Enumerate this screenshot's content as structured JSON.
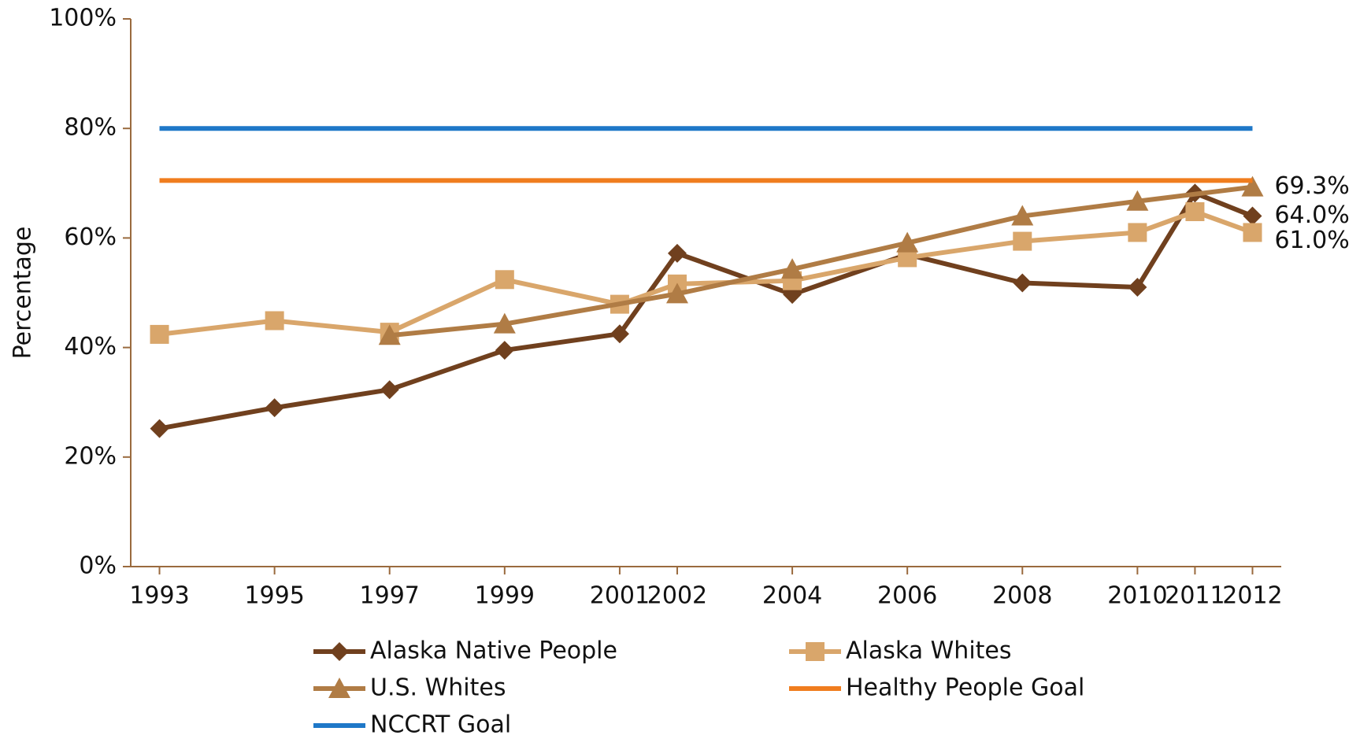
{
  "chart_data": {
    "type": "line",
    "y_label": "Percentage",
    "x": [
      1993,
      1995,
      1997,
      1999,
      2001,
      2002,
      2004,
      2006,
      2008,
      2010,
      2011,
      2012
    ],
    "xlim": [
      1992.5,
      2012.5
    ],
    "xticks": [
      1993,
      1995,
      1997,
      1999,
      2001,
      2002,
      2004,
      2006,
      2008,
      2010,
      2011,
      2012
    ],
    "ylim": [
      0,
      100
    ],
    "yticks": [
      {
        "value": 0,
        "label": "0%"
      },
      {
        "value": 20,
        "label": "20%"
      },
      {
        "value": 40,
        "label": "40%"
      },
      {
        "value": 60,
        "label": "60%"
      },
      {
        "value": 80,
        "label": "80%"
      },
      {
        "value": 100,
        "label": "100%"
      }
    ],
    "grid": false,
    "legend": "bottom",
    "series": [
      {
        "name": "Alaska Native People",
        "color": "#70401e",
        "marker": "diamond",
        "values": [
          25.2,
          29.0,
          32.3,
          39.5,
          42.5,
          57.2,
          49.7,
          57.0,
          51.8,
          51.0,
          68.2,
          64.0
        ],
        "value_labels": [
          null,
          null,
          null,
          null,
          null,
          null,
          null,
          null,
          null,
          null,
          null,
          "64.0%"
        ]
      },
      {
        "name": "Alaska Whites",
        "color": "#d9a66b",
        "marker": "square",
        "values": [
          42.4,
          44.9,
          42.8,
          52.4,
          47.9,
          51.6,
          52.2,
          56.4,
          59.4,
          61.0,
          64.8,
          61.0
        ],
        "value_labels": [
          null,
          null,
          null,
          null,
          null,
          null,
          null,
          null,
          null,
          null,
          null,
          "61.0%"
        ]
      },
      {
        "name": "U.S. Whites",
        "color": "#b07c45",
        "marker": "triangle",
        "x": [
          1997,
          1999,
          2002,
          2004,
          2006,
          2008,
          2010,
          2012
        ],
        "values": [
          42.2,
          44.3,
          49.8,
          54.3,
          59.1,
          64.0,
          66.7,
          69.3
        ],
        "value_labels": [
          null,
          null,
          null,
          null,
          null,
          null,
          null,
          "69.3%"
        ]
      },
      {
        "name": "Healthy People Goal",
        "color": "#f07d1e",
        "marker": "none",
        "values": [
          70.5,
          70.5,
          70.5,
          70.5,
          70.5,
          70.5,
          70.5,
          70.5,
          70.5,
          70.5,
          70.5,
          70.5
        ]
      },
      {
        "name": "NCCRT Goal",
        "color": "#1f78c8",
        "marker": "none",
        "values": [
          80,
          80,
          80,
          80,
          80,
          80,
          80,
          80,
          80,
          80,
          80,
          80
        ]
      }
    ]
  }
}
